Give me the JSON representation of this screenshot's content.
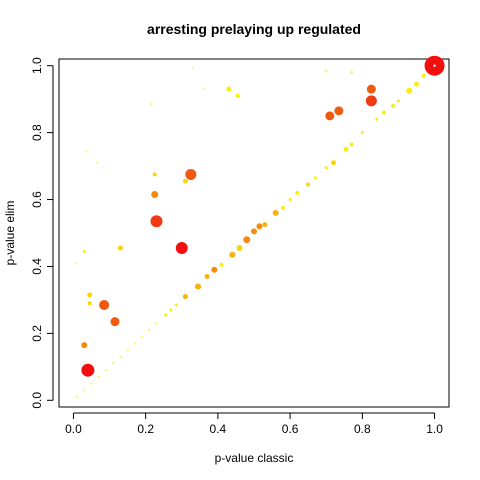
{
  "chart_data": {
    "type": "scatter",
    "title": "arresting prelaying up regulated",
    "xlabel": "p-value classic",
    "ylabel": "p-value elim",
    "xlim": [
      -0.04,
      1.04
    ],
    "ylim": [
      -0.02,
      1.02
    ],
    "x_ticks": [
      "0.0",
      "0.2",
      "0.4",
      "0.6",
      "0.8",
      "1.0"
    ],
    "y_ticks": [
      "0.0",
      "0.2",
      "0.4",
      "0.6",
      "0.8",
      "1.0"
    ],
    "grid": false,
    "legend": "none",
    "colors": {
      "red": "#F20F0F",
      "red_orange": "#F03A12",
      "orange": "#EF5A10",
      "dark_orange": "#F58A10",
      "amber": "#F5B30C",
      "gold": "#F7D60A",
      "yellow": "#F8EE12",
      "pale_yellow": "#FAF566",
      "white": "#FFFFFF"
    },
    "points": [
      {
        "x": 1.0,
        "y": 1.0,
        "size": 10,
        "color": "#F20F0F"
      },
      {
        "x": 0.04,
        "y": 0.09,
        "size": 6.5,
        "color": "#F20F0F"
      },
      {
        "x": 0.3,
        "y": 0.455,
        "size": 6,
        "color": "#F20F0F"
      },
      {
        "x": 0.23,
        "y": 0.535,
        "size": 6,
        "color": "#F03A12"
      },
      {
        "x": 0.325,
        "y": 0.675,
        "size": 5.5,
        "color": "#EF5A10"
      },
      {
        "x": 0.085,
        "y": 0.285,
        "size": 5,
        "color": "#EF5A10"
      },
      {
        "x": 0.825,
        "y": 0.895,
        "size": 5.5,
        "color": "#F03A12"
      },
      {
        "x": 0.825,
        "y": 0.93,
        "size": 4.5,
        "color": "#EF5A10"
      },
      {
        "x": 0.735,
        "y": 0.865,
        "size": 4.5,
        "color": "#EF5A10"
      },
      {
        "x": 0.71,
        "y": 0.85,
        "size": 4.5,
        "color": "#EF5A10"
      },
      {
        "x": 0.115,
        "y": 0.235,
        "size": 4.5,
        "color": "#EF5A10"
      },
      {
        "x": 0.225,
        "y": 0.615,
        "size": 3.5,
        "color": "#F58A10"
      },
      {
        "x": 0.03,
        "y": 0.165,
        "size": 3,
        "color": "#F58A10"
      },
      {
        "x": 0.39,
        "y": 0.39,
        "size": 3,
        "color": "#F58A10"
      },
      {
        "x": 0.48,
        "y": 0.48,
        "size": 3.5,
        "color": "#F58A10"
      },
      {
        "x": 0.5,
        "y": 0.505,
        "size": 3,
        "color": "#F58A10"
      },
      {
        "x": 0.515,
        "y": 0.52,
        "size": 3,
        "color": "#F58A10"
      },
      {
        "x": 0.56,
        "y": 0.56,
        "size": 3,
        "color": "#F5B30C"
      },
      {
        "x": 0.31,
        "y": 0.31,
        "size": 2.5,
        "color": "#F5B30C"
      },
      {
        "x": 0.345,
        "y": 0.34,
        "size": 3,
        "color": "#F5B30C"
      },
      {
        "x": 0.37,
        "y": 0.37,
        "size": 2.5,
        "color": "#F5B30C"
      },
      {
        "x": 0.44,
        "y": 0.435,
        "size": 3,
        "color": "#F5B30C"
      },
      {
        "x": 0.46,
        "y": 0.455,
        "size": 3,
        "color": "#F7D60A"
      },
      {
        "x": 0.53,
        "y": 0.525,
        "size": 2.5,
        "color": "#F5B30C"
      },
      {
        "x": 0.13,
        "y": 0.455,
        "size": 2.5,
        "color": "#F7D60A"
      },
      {
        "x": 0.045,
        "y": 0.315,
        "size": 2.5,
        "color": "#F7D60A"
      },
      {
        "x": 0.045,
        "y": 0.29,
        "size": 2,
        "color": "#F7D60A"
      },
      {
        "x": 0.225,
        "y": 0.675,
        "size": 2,
        "color": "#F7D60A"
      },
      {
        "x": 0.31,
        "y": 0.655,
        "size": 2.5,
        "color": "#F7D60A"
      },
      {
        "x": 0.43,
        "y": 0.93,
        "size": 2.5,
        "color": "#F8EE12"
      },
      {
        "x": 0.455,
        "y": 0.91,
        "size": 2,
        "color": "#F8EE12"
      },
      {
        "x": 0.03,
        "y": 0.445,
        "size": 1.5,
        "color": "#F8EE12"
      },
      {
        "x": 0.62,
        "y": 0.62,
        "size": 2,
        "color": "#F8EE12"
      },
      {
        "x": 0.65,
        "y": 0.645,
        "size": 2,
        "color": "#F7D60A"
      },
      {
        "x": 0.72,
        "y": 0.71,
        "size": 2.5,
        "color": "#F7D60A"
      },
      {
        "x": 0.755,
        "y": 0.75,
        "size": 2.5,
        "color": "#F8EE12"
      },
      {
        "x": 0.77,
        "y": 0.765,
        "size": 2,
        "color": "#F8EE12"
      },
      {
        "x": 0.93,
        "y": 0.925,
        "size": 3,
        "color": "#F8EE12"
      },
      {
        "x": 0.95,
        "y": 0.945,
        "size": 2.5,
        "color": "#F8EE12"
      },
      {
        "x": 0.97,
        "y": 0.97,
        "size": 2,
        "color": "#F8EE12"
      },
      {
        "x": 0.86,
        "y": 0.86,
        "size": 2,
        "color": "#F8EE12"
      },
      {
        "x": 0.885,
        "y": 0.88,
        "size": 2,
        "color": "#F8EE12"
      },
      {
        "x": 0.9,
        "y": 0.895,
        "size": 1.5,
        "color": "#F8EE12"
      },
      {
        "x": 0.8,
        "y": 0.8,
        "size": 1.5,
        "color": "#F8EE12"
      },
      {
        "x": 0.84,
        "y": 0.84,
        "size": 1.5,
        "color": "#F8EE12"
      },
      {
        "x": 0.58,
        "y": 0.575,
        "size": 2,
        "color": "#F8EE12"
      },
      {
        "x": 0.6,
        "y": 0.6,
        "size": 1.5,
        "color": "#F8EE12"
      },
      {
        "x": 0.67,
        "y": 0.665,
        "size": 1.5,
        "color": "#F8EE12"
      },
      {
        "x": 0.7,
        "y": 0.695,
        "size": 1.5,
        "color": "#F8EE12"
      },
      {
        "x": 0.41,
        "y": 0.405,
        "size": 2,
        "color": "#F8EE12"
      },
      {
        "x": 0.255,
        "y": 0.255,
        "size": 1.5,
        "color": "#F8EE12"
      },
      {
        "x": 0.27,
        "y": 0.27,
        "size": 1.5,
        "color": "#F8EE12"
      },
      {
        "x": 0.285,
        "y": 0.285,
        "size": 1.5,
        "color": "#F8EE12"
      },
      {
        "x": 0.23,
        "y": 0.23,
        "size": 1.2,
        "color": "#FAF566"
      },
      {
        "x": 0.21,
        "y": 0.21,
        "size": 1.2,
        "color": "#FAF566"
      },
      {
        "x": 0.19,
        "y": 0.19,
        "size": 1.2,
        "color": "#FAF566"
      },
      {
        "x": 0.17,
        "y": 0.17,
        "size": 1.2,
        "color": "#FAF566"
      },
      {
        "x": 0.15,
        "y": 0.15,
        "size": 1.2,
        "color": "#FAF566"
      },
      {
        "x": 0.13,
        "y": 0.13,
        "size": 1.2,
        "color": "#FAF566"
      },
      {
        "x": 0.11,
        "y": 0.11,
        "size": 1.2,
        "color": "#FAF566"
      },
      {
        "x": 0.09,
        "y": 0.09,
        "size": 1.2,
        "color": "#FAF566"
      },
      {
        "x": 0.07,
        "y": 0.07,
        "size": 1.2,
        "color": "#FAF566"
      },
      {
        "x": 0.05,
        "y": 0.05,
        "size": 1.2,
        "color": "#FAF566"
      },
      {
        "x": 0.03,
        "y": 0.03,
        "size": 1.2,
        "color": "#FAF566"
      },
      {
        "x": 0.01,
        "y": 0.01,
        "size": 1.2,
        "color": "#FAF566"
      },
      {
        "x": 0.215,
        "y": 0.885,
        "size": 1.2,
        "color": "#FAF566"
      },
      {
        "x": 0.035,
        "y": 0.745,
        "size": 1,
        "color": "#FAF566"
      },
      {
        "x": 0.065,
        "y": 0.71,
        "size": 1,
        "color": "#FAF566"
      },
      {
        "x": 0.33,
        "y": 0.995,
        "size": 1,
        "color": "#FAF566"
      },
      {
        "x": 0.7,
        "y": 0.985,
        "size": 1.5,
        "color": "#FAF566"
      },
      {
        "x": 0.77,
        "y": 0.98,
        "size": 1.5,
        "color": "#FAF566"
      },
      {
        "x": 0.36,
        "y": 0.93,
        "size": 1,
        "color": "#FAF566"
      },
      {
        "x": 0.005,
        "y": 0.41,
        "size": 1,
        "color": "#FAF566"
      },
      {
        "x": 1.0,
        "y": 1.0,
        "size": 1.2,
        "color": "#FFFFFF"
      }
    ]
  }
}
